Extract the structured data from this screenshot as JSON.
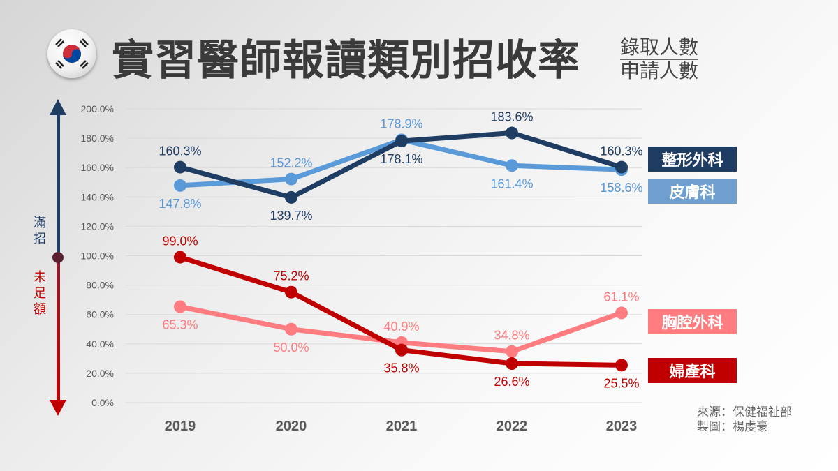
{
  "title": "實習醫師報讀類別招收率",
  "ratio": {
    "numerator": "錄取人數",
    "denominator": "申請人數"
  },
  "flag_icon": "south-korea-flag",
  "side_labels": {
    "top": "滿招",
    "bottom": "未足額"
  },
  "source": {
    "line1": "來源：保健福祉部",
    "line2": "製圖：楊虔豪"
  },
  "chart_data": {
    "type": "line",
    "categories": [
      "2019",
      "2020",
      "2021",
      "2022",
      "2023"
    ],
    "ylim": [
      0,
      200
    ],
    "yticks": [
      "0.0%",
      "20.0%",
      "40.0%",
      "60.0%",
      "80.0%",
      "100.0%",
      "120.0%",
      "140.0%",
      "160.0%",
      "180.0%",
      "200.0%"
    ],
    "grid": true,
    "legend": "right",
    "series": [
      {
        "name": "整形外科",
        "color": "#1f3c63",
        "values": [
          160.3,
          139.7,
          178.1,
          183.6,
          160.3
        ],
        "labels": [
          "160.3%",
          "139.7%",
          "178.1%",
          "183.6%",
          "160.3%"
        ]
      },
      {
        "name": "皮膚科",
        "color": "#5a9ad9",
        "legend_color": "#6e9fcf",
        "values": [
          147.8,
          152.2,
          178.9,
          161.4,
          158.6
        ],
        "labels": [
          "147.8%",
          "152.2%",
          "178.9%",
          "161.4%",
          "158.6%"
        ]
      },
      {
        "name": "胸腔外科",
        "color": "#ff7c80",
        "values": [
          65.3,
          50.0,
          40.9,
          34.8,
          61.1
        ],
        "labels": [
          "65.3%",
          "50.0%",
          "40.9%",
          "34.8%",
          "61.1%"
        ]
      },
      {
        "name": "婦產科",
        "color": "#c00000",
        "values": [
          99.0,
          75.2,
          35.8,
          26.6,
          25.5
        ],
        "labels": [
          "99.0%",
          "75.2%",
          "35.8%",
          "26.6%",
          "25.5%"
        ]
      }
    ]
  }
}
